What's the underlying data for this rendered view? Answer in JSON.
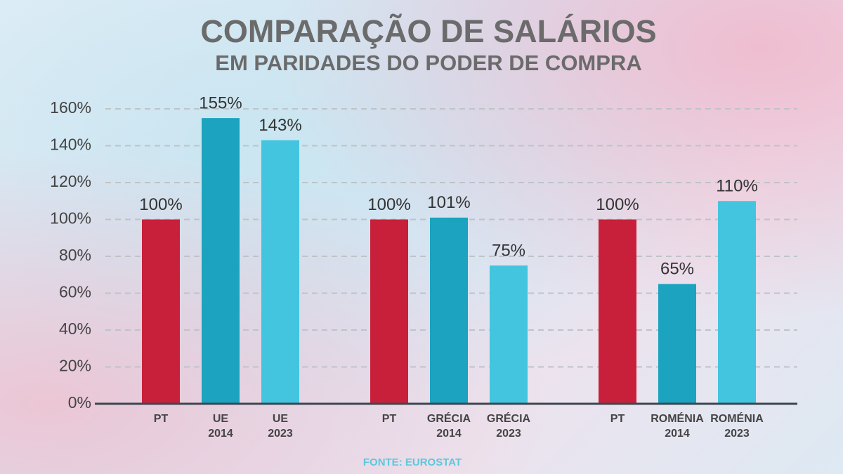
{
  "chart_data": {
    "type": "bar",
    "title": "COMPARAÇÃO DE SALÁRIOS",
    "subtitle": "EM PARIDADES DO PODER DE COMPRA",
    "source": "FONTE: EUROSTAT",
    "categories": [
      "PT",
      "UE\n2014",
      "UE\n2023",
      "PT",
      "GRÉCIA\n2014",
      "GRÉCIA\n2023",
      "PT",
      "ROMÉNIA\n2014",
      "ROMÉNIA\n2023"
    ],
    "values": [
      100,
      155,
      143,
      100,
      101,
      75,
      100,
      65,
      110
    ],
    "value_labels": [
      "100%",
      "155%",
      "143%",
      "100%",
      "101%",
      "75%",
      "100%",
      "65%",
      "110%"
    ],
    "colors": [
      "#c8203a",
      "#1ba3c0",
      "#43c5df",
      "#c8203a",
      "#1ba3c0",
      "#43c5df",
      "#c8203a",
      "#1ba3c0",
      "#43c5df"
    ],
    "ylim": [
      0,
      160
    ],
    "yticks": [
      {
        "value": 0,
        "label": "0%"
      },
      {
        "value": 20,
        "label": "20%"
      },
      {
        "value": 40,
        "label": "40%"
      },
      {
        "value": 60,
        "label": "60%"
      },
      {
        "value": 80,
        "label": "80%"
      },
      {
        "value": 100,
        "label": "100%"
      },
      {
        "value": 120,
        "label": "120%"
      },
      {
        "value": 140,
        "label": "140%"
      },
      {
        "value": 160,
        "label": "160%"
      }
    ],
    "grid": true
  }
}
